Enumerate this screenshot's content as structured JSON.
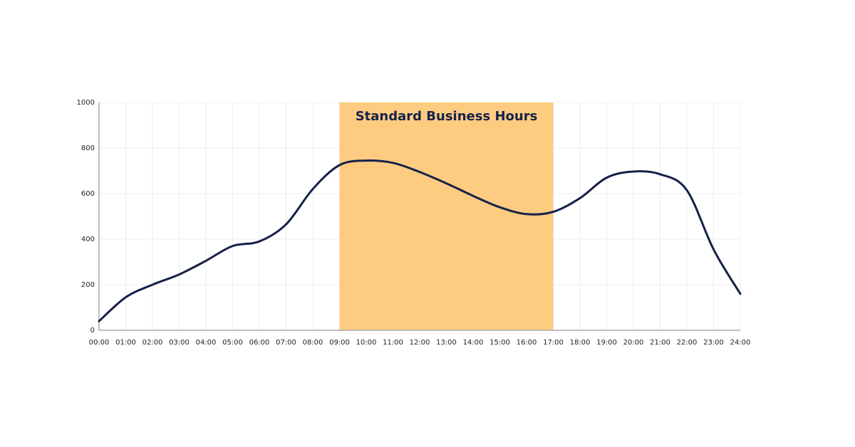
{
  "chart_data": {
    "type": "line",
    "highlight": {
      "label": "Standard Business Hours",
      "start": 9,
      "end": 17,
      "color": "#fdc97a"
    },
    "x": [
      0,
      1,
      2,
      3,
      4,
      5,
      6,
      7,
      8,
      9,
      10,
      11,
      12,
      13,
      14,
      15,
      16,
      17,
      18,
      19,
      20,
      21,
      22,
      23,
      24
    ],
    "series": [
      {
        "color": "#16214a",
        "values": [
          40,
          145,
          200,
          245,
          305,
          370,
          390,
          465,
          620,
          725,
          745,
          735,
          695,
          645,
          590,
          540,
          510,
          520,
          580,
          670,
          697,
          685,
          615,
          355,
          160
        ]
      }
    ],
    "xlim": [
      0,
      24
    ],
    "xticks": [
      {
        "value": 0,
        "label": "00:00"
      },
      {
        "value": 1,
        "label": "01:00"
      },
      {
        "value": 2,
        "label": "02:00"
      },
      {
        "value": 3,
        "label": "03:00"
      },
      {
        "value": 4,
        "label": "04:00"
      },
      {
        "value": 5,
        "label": "05:00"
      },
      {
        "value": 6,
        "label": "06:00"
      },
      {
        "value": 7,
        "label": "07:00"
      },
      {
        "value": 8,
        "label": "08:00"
      },
      {
        "value": 9,
        "label": "09:00"
      },
      {
        "value": 10,
        "label": "10:00"
      },
      {
        "value": 11,
        "label": "11:00"
      },
      {
        "value": 12,
        "label": "12:00"
      },
      {
        "value": 13,
        "label": "13:00"
      },
      {
        "value": 14,
        "label": "14:00"
      },
      {
        "value": 15,
        "label": "15:00"
      },
      {
        "value": 16,
        "label": "16:00"
      },
      {
        "value": 17,
        "label": "17:00"
      },
      {
        "value": 18,
        "label": "18:00"
      },
      {
        "value": 19,
        "label": "19:00"
      },
      {
        "value": 20,
        "label": "20:00"
      },
      {
        "value": 21,
        "label": "21:00"
      },
      {
        "value": 22,
        "label": "22:00"
      },
      {
        "value": 23,
        "label": "23:00"
      },
      {
        "value": 24,
        "label": "24:00"
      }
    ],
    "ylim": [
      0,
      1000
    ],
    "yticks": [
      0,
      200,
      400,
      600,
      800,
      1000
    ],
    "grid": true
  }
}
